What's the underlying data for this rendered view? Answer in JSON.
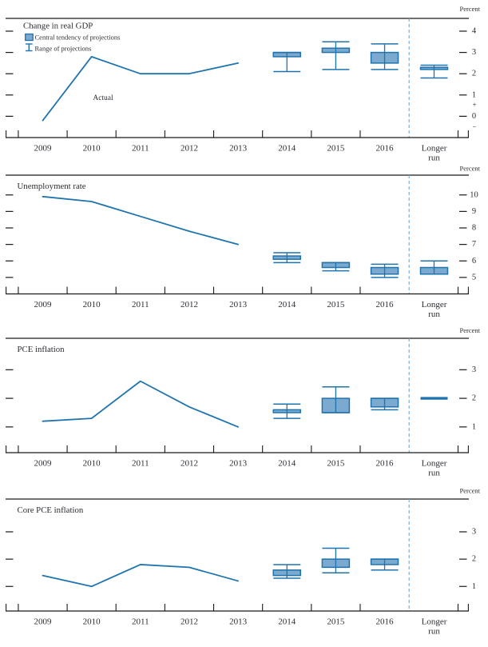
{
  "figure": {
    "unit_label": "Percent",
    "legend": [
      {
        "icon": "central-tendency-swatch",
        "label": "Central tendency of projections"
      },
      {
        "icon": "range-ibeam",
        "label": "Range of projections"
      }
    ]
  },
  "colors": {
    "actual_line": "#1f74ae",
    "projection_line": "#1f74ae",
    "central_tendency_fill": "#7ba9cf",
    "separator_dash": "#74a9d4",
    "axis": "#1a1a1a",
    "text": "#2b2d33"
  },
  "chart_data": [
    {
      "id": "gdp",
      "type": "line",
      "title": "Change in real GDP",
      "unit_label": "Percent",
      "x_categories": [
        "2009",
        "2010",
        "2011",
        "2012",
        "2013",
        "2014",
        "2015",
        "2016",
        "Longer run"
      ],
      "yticks": [
        4,
        3,
        2,
        1,
        0
      ],
      "ylim": [
        -1.0,
        4.6
      ],
      "zero_sign_marks": true,
      "grid": false,
      "actual_series": {
        "name": "Actual",
        "x": [
          "2009",
          "2010",
          "2011",
          "2012",
          "2013"
        ],
        "values": [
          -0.2,
          2.8,
          2.0,
          2.0,
          2.5
        ]
      },
      "projection_series": [
        {
          "x": "2014",
          "central_tendency": [
            2.8,
            3.0
          ],
          "range": [
            2.1,
            3.0
          ]
        },
        {
          "x": "2015",
          "central_tendency": [
            3.0,
            3.2
          ],
          "range": [
            2.2,
            3.5
          ]
        },
        {
          "x": "2016",
          "central_tendency": [
            2.5,
            3.0
          ],
          "range": [
            2.2,
            3.4
          ]
        },
        {
          "x": "Longer run",
          "central_tendency": [
            2.2,
            2.3
          ],
          "range": [
            1.8,
            2.4
          ]
        }
      ]
    },
    {
      "id": "unemployment",
      "type": "line",
      "title": "Unemployment rate",
      "unit_label": "Percent",
      "x_categories": [
        "2009",
        "2010",
        "2011",
        "2012",
        "2013",
        "2014",
        "2015",
        "2016",
        "Longer run"
      ],
      "yticks": [
        10,
        9,
        8,
        7,
        6,
        5
      ],
      "ylim": [
        4.0,
        11.2
      ],
      "zero_sign_marks": false,
      "grid": false,
      "actual_series": {
        "name": "Actual",
        "x": [
          "2009",
          "2010",
          "2011",
          "2012",
          "2013"
        ],
        "values": [
          9.9,
          9.6,
          8.7,
          7.8,
          7.0
        ]
      },
      "projection_series": [
        {
          "x": "2014",
          "central_tendency": [
            6.1,
            6.3
          ],
          "range": [
            5.9,
            6.5
          ]
        },
        {
          "x": "2015",
          "central_tendency": [
            5.6,
            5.9
          ],
          "range": [
            5.4,
            5.9
          ]
        },
        {
          "x": "2016",
          "central_tendency": [
            5.2,
            5.6
          ],
          "range": [
            5.0,
            5.8
          ]
        },
        {
          "x": "Longer run",
          "central_tendency": [
            5.2,
            5.6
          ],
          "range": [
            5.2,
            6.0
          ]
        }
      ]
    },
    {
      "id": "pce-inflation",
      "type": "line",
      "title": "PCE inflation",
      "unit_label": "Percent",
      "x_categories": [
        "2009",
        "2010",
        "2011",
        "2012",
        "2013",
        "2014",
        "2015",
        "2016",
        "Longer run"
      ],
      "yticks": [
        3,
        2,
        1
      ],
      "ylim": [
        0.1,
        4.1
      ],
      "zero_sign_marks": false,
      "grid": false,
      "actual_series": {
        "name": "Actual",
        "x": [
          "2009",
          "2010",
          "2011",
          "2012",
          "2013"
        ],
        "values": [
          1.2,
          1.3,
          2.6,
          1.7,
          1.0
        ]
      },
      "projection_series": [
        {
          "x": "2014",
          "central_tendency": [
            1.5,
            1.6
          ],
          "range": [
            1.3,
            1.8
          ]
        },
        {
          "x": "2015",
          "central_tendency": [
            1.5,
            2.0
          ],
          "range": [
            1.5,
            2.4
          ]
        },
        {
          "x": "2016",
          "central_tendency": [
            1.7,
            2.0
          ],
          "range": [
            1.6,
            2.0
          ]
        },
        {
          "x": "Longer run",
          "central_tendency": [
            2.0,
            2.0
          ],
          "range": [
            2.0,
            2.0
          ]
        }
      ]
    },
    {
      "id": "core-pce-inflation",
      "type": "line",
      "title": "Core PCE inflation",
      "unit_label": "Percent",
      "x_categories": [
        "2009",
        "2010",
        "2011",
        "2012",
        "2013",
        "2014",
        "2015",
        "2016",
        "Longer run"
      ],
      "yticks": [
        3,
        2,
        1
      ],
      "ylim": [
        0.1,
        4.2
      ],
      "zero_sign_marks": false,
      "grid": false,
      "actual_series": {
        "name": "Actual",
        "x": [
          "2009",
          "2010",
          "2011",
          "2012",
          "2013"
        ],
        "values": [
          1.4,
          1.0,
          1.8,
          1.7,
          1.2
        ]
      },
      "projection_series": [
        {
          "x": "2014",
          "central_tendency": [
            1.4,
            1.6
          ],
          "range": [
            1.3,
            1.8
          ]
        },
        {
          "x": "2015",
          "central_tendency": [
            1.7,
            2.0
          ],
          "range": [
            1.5,
            2.4
          ]
        },
        {
          "x": "2016",
          "central_tendency": [
            1.8,
            2.0
          ],
          "range": [
            1.6,
            2.0
          ]
        }
      ]
    }
  ]
}
